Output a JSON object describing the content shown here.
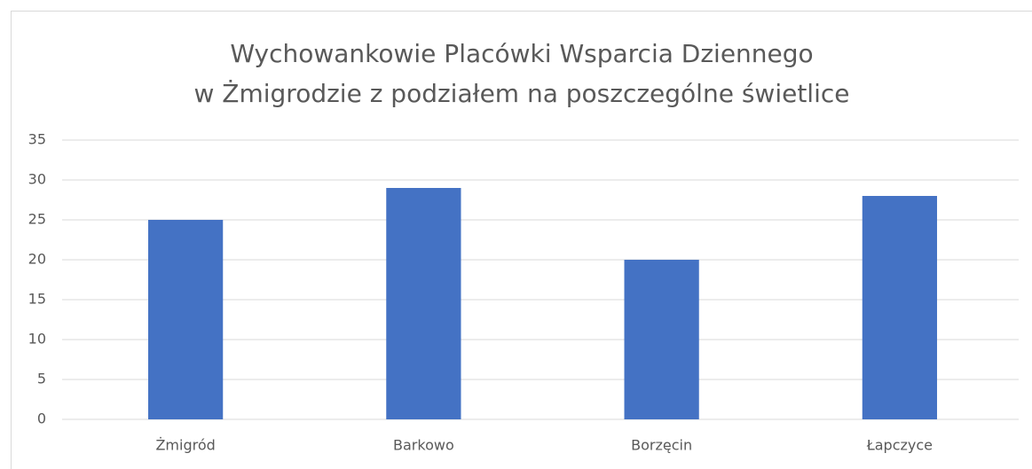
{
  "chart_data": {
    "type": "bar",
    "title": [
      "Wychowankowie Placówki Wsparcia Dziennego",
      "w Żmigrodzie z podziałem na poszczególne świetlice"
    ],
    "categories": [
      "Żmigród",
      "Barkowo",
      "Borzęcin",
      "Łapczyce"
    ],
    "values": [
      25,
      29,
      20,
      28
    ],
    "color": "#4472c4",
    "ylim": [
      0,
      35
    ],
    "yticks": [
      0,
      5,
      10,
      15,
      20,
      25,
      30,
      35
    ],
    "grid": true
  }
}
